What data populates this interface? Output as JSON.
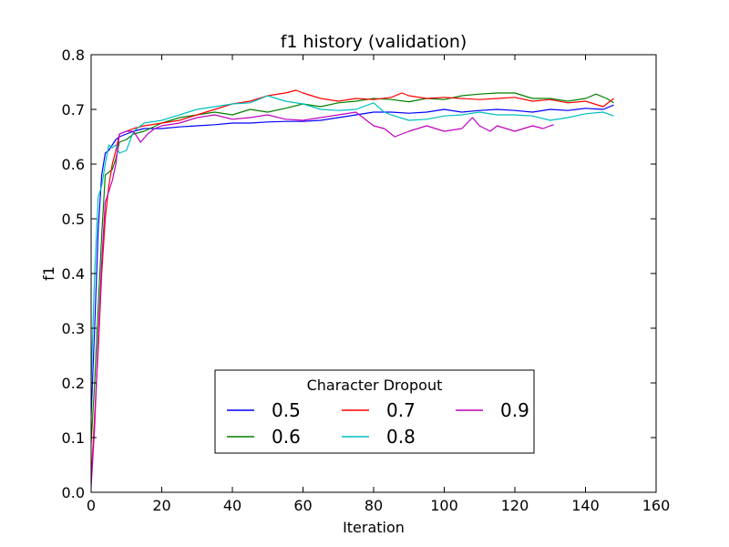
{
  "chart_data": {
    "type": "line",
    "title": "f1 history (validation)",
    "xlabel": "Iteration",
    "ylabel": "f1",
    "xlim": [
      0,
      160
    ],
    "ylim": [
      0.0,
      0.8
    ],
    "xticks": [
      "0",
      "20",
      "40",
      "60",
      "80",
      "100",
      "120",
      "140",
      "160"
    ],
    "yticks": [
      "0.0",
      "0.1",
      "0.2",
      "0.3",
      "0.4",
      "0.5",
      "0.6",
      "0.7",
      "0.8"
    ],
    "grid": false,
    "legend": {
      "title": "Character Dropout",
      "placement": "lower-center",
      "ncol": 3
    },
    "series": [
      {
        "name": "0.5",
        "color": "#0000ff",
        "x": [
          0,
          1,
          2,
          3,
          4,
          5,
          6,
          7,
          8,
          10,
          12,
          15,
          20,
          25,
          30,
          35,
          40,
          45,
          50,
          55,
          60,
          65,
          70,
          75,
          80,
          85,
          90,
          95,
          100,
          105,
          110,
          115,
          120,
          125,
          130,
          135,
          140,
          145,
          148
        ],
        "y": [
          0.14,
          0.3,
          0.48,
          0.58,
          0.62,
          0.625,
          0.635,
          0.645,
          0.65,
          0.655,
          0.66,
          0.665,
          0.665,
          0.668,
          0.67,
          0.672,
          0.675,
          0.675,
          0.677,
          0.678,
          0.678,
          0.68,
          0.685,
          0.69,
          0.695,
          0.695,
          0.693,
          0.695,
          0.7,
          0.695,
          0.698,
          0.7,
          0.698,
          0.695,
          0.7,
          0.698,
          0.702,
          0.7,
          0.708
        ]
      },
      {
        "name": "0.6",
        "color": "#008000",
        "x": [
          0,
          1,
          2,
          3,
          4,
          5,
          6,
          7,
          8,
          10,
          12,
          15,
          20,
          25,
          30,
          35,
          40,
          45,
          50,
          55,
          60,
          65,
          70,
          75,
          80,
          85,
          90,
          95,
          100,
          105,
          110,
          115,
          120,
          125,
          130,
          135,
          140,
          143,
          146,
          148
        ],
        "y": [
          0.09,
          0.2,
          0.34,
          0.47,
          0.58,
          0.585,
          0.59,
          0.61,
          0.64,
          0.645,
          0.655,
          0.66,
          0.675,
          0.685,
          0.69,
          0.695,
          0.69,
          0.7,
          0.695,
          0.702,
          0.71,
          0.705,
          0.712,
          0.715,
          0.72,
          0.718,
          0.714,
          0.72,
          0.718,
          0.725,
          0.728,
          0.73,
          0.73,
          0.72,
          0.72,
          0.715,
          0.72,
          0.728,
          0.72,
          0.712
        ]
      },
      {
        "name": "0.7",
        "color": "#ff0000",
        "x": [
          0,
          1,
          2,
          3,
          4,
          5,
          6,
          7,
          8,
          10,
          12,
          15,
          20,
          25,
          30,
          35,
          40,
          45,
          50,
          55,
          58,
          60,
          65,
          70,
          75,
          80,
          85,
          88,
          90,
          95,
          100,
          105,
          110,
          115,
          120,
          125,
          130,
          135,
          140,
          145,
          148
        ],
        "y": [
          0.02,
          0.14,
          0.26,
          0.4,
          0.5,
          0.56,
          0.6,
          0.625,
          0.655,
          0.66,
          0.665,
          0.67,
          0.675,
          0.68,
          0.69,
          0.7,
          0.71,
          0.715,
          0.725,
          0.73,
          0.735,
          0.73,
          0.72,
          0.715,
          0.72,
          0.718,
          0.722,
          0.73,
          0.725,
          0.72,
          0.722,
          0.72,
          0.718,
          0.72,
          0.722,
          0.715,
          0.718,
          0.712,
          0.715,
          0.705,
          0.72
        ]
      },
      {
        "name": "0.8",
        "color": "#00bfbf",
        "x": [
          0,
          1,
          2,
          3,
          4,
          5,
          6,
          7,
          8,
          10,
          12,
          15,
          20,
          25,
          30,
          35,
          40,
          45,
          50,
          55,
          60,
          65,
          70,
          75,
          80,
          83,
          85,
          90,
          95,
          100,
          105,
          110,
          115,
          120,
          125,
          130,
          135,
          140,
          145,
          148
        ],
        "y": [
          0.2,
          0.4,
          0.54,
          0.56,
          0.6,
          0.635,
          0.63,
          0.635,
          0.62,
          0.625,
          0.66,
          0.675,
          0.68,
          0.69,
          0.7,
          0.705,
          0.71,
          0.712,
          0.725,
          0.715,
          0.71,
          0.7,
          0.698,
          0.7,
          0.712,
          0.695,
          0.69,
          0.68,
          0.682,
          0.688,
          0.69,
          0.695,
          0.69,
          0.69,
          0.688,
          0.68,
          0.685,
          0.692,
          0.695,
          0.688
        ]
      },
      {
        "name": "0.9",
        "color": "#bf00bf",
        "x": [
          0,
          1,
          2,
          3,
          4,
          5,
          6,
          7,
          8,
          10,
          12,
          14,
          16,
          18,
          20,
          25,
          30,
          35,
          40,
          45,
          50,
          55,
          60,
          65,
          70,
          75,
          80,
          83,
          86,
          90,
          95,
          100,
          105,
          108,
          110,
          113,
          115,
          120,
          125,
          128,
          130,
          131
        ],
        "y": [
          0.01,
          0.12,
          0.28,
          0.42,
          0.53,
          0.55,
          0.57,
          0.6,
          0.655,
          0.66,
          0.66,
          0.64,
          0.655,
          0.665,
          0.67,
          0.675,
          0.685,
          0.69,
          0.682,
          0.685,
          0.69,
          0.682,
          0.68,
          0.685,
          0.69,
          0.695,
          0.67,
          0.665,
          0.65,
          0.66,
          0.67,
          0.66,
          0.665,
          0.685,
          0.67,
          0.66,
          0.67,
          0.66,
          0.67,
          0.665,
          0.67,
          0.672
        ]
      }
    ]
  }
}
